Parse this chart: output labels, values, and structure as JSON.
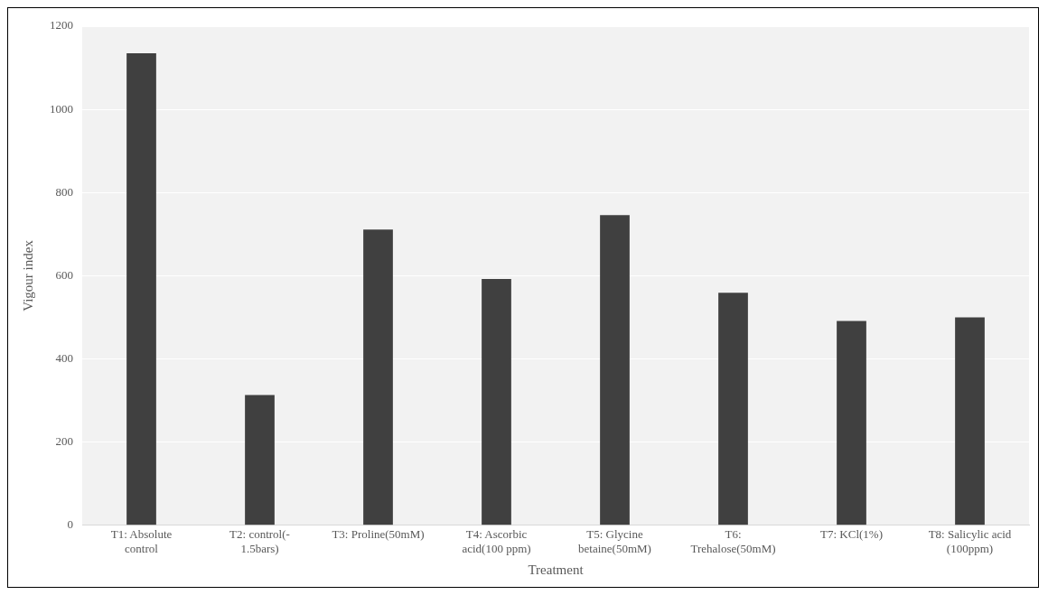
{
  "chart_data": {
    "type": "bar",
    "xlabel": "Treatment",
    "ylabel": "Vigour index",
    "categories": [
      "T1: Absolute\ncontrol",
      "T2: control(-\n1.5bars)",
      "T3: Proline(50mM)",
      "T4: Ascorbic\nacid(100 ppm)",
      "T5: Glycine\nbetaine(50mM)",
      "T6:\nTrehalose(50mM)",
      "T7: KCl(1%)",
      "T8: Salicylic acid\n(100ppm)"
    ],
    "values": [
      1135,
      313,
      711,
      592,
      746,
      559,
      491,
      500
    ],
    "color": "#404040",
    "ylim": [
      0,
      1200
    ],
    "yticks": [
      0,
      200,
      400,
      600,
      800,
      1000,
      1200
    ],
    "grid": "y",
    "legend": false
  }
}
